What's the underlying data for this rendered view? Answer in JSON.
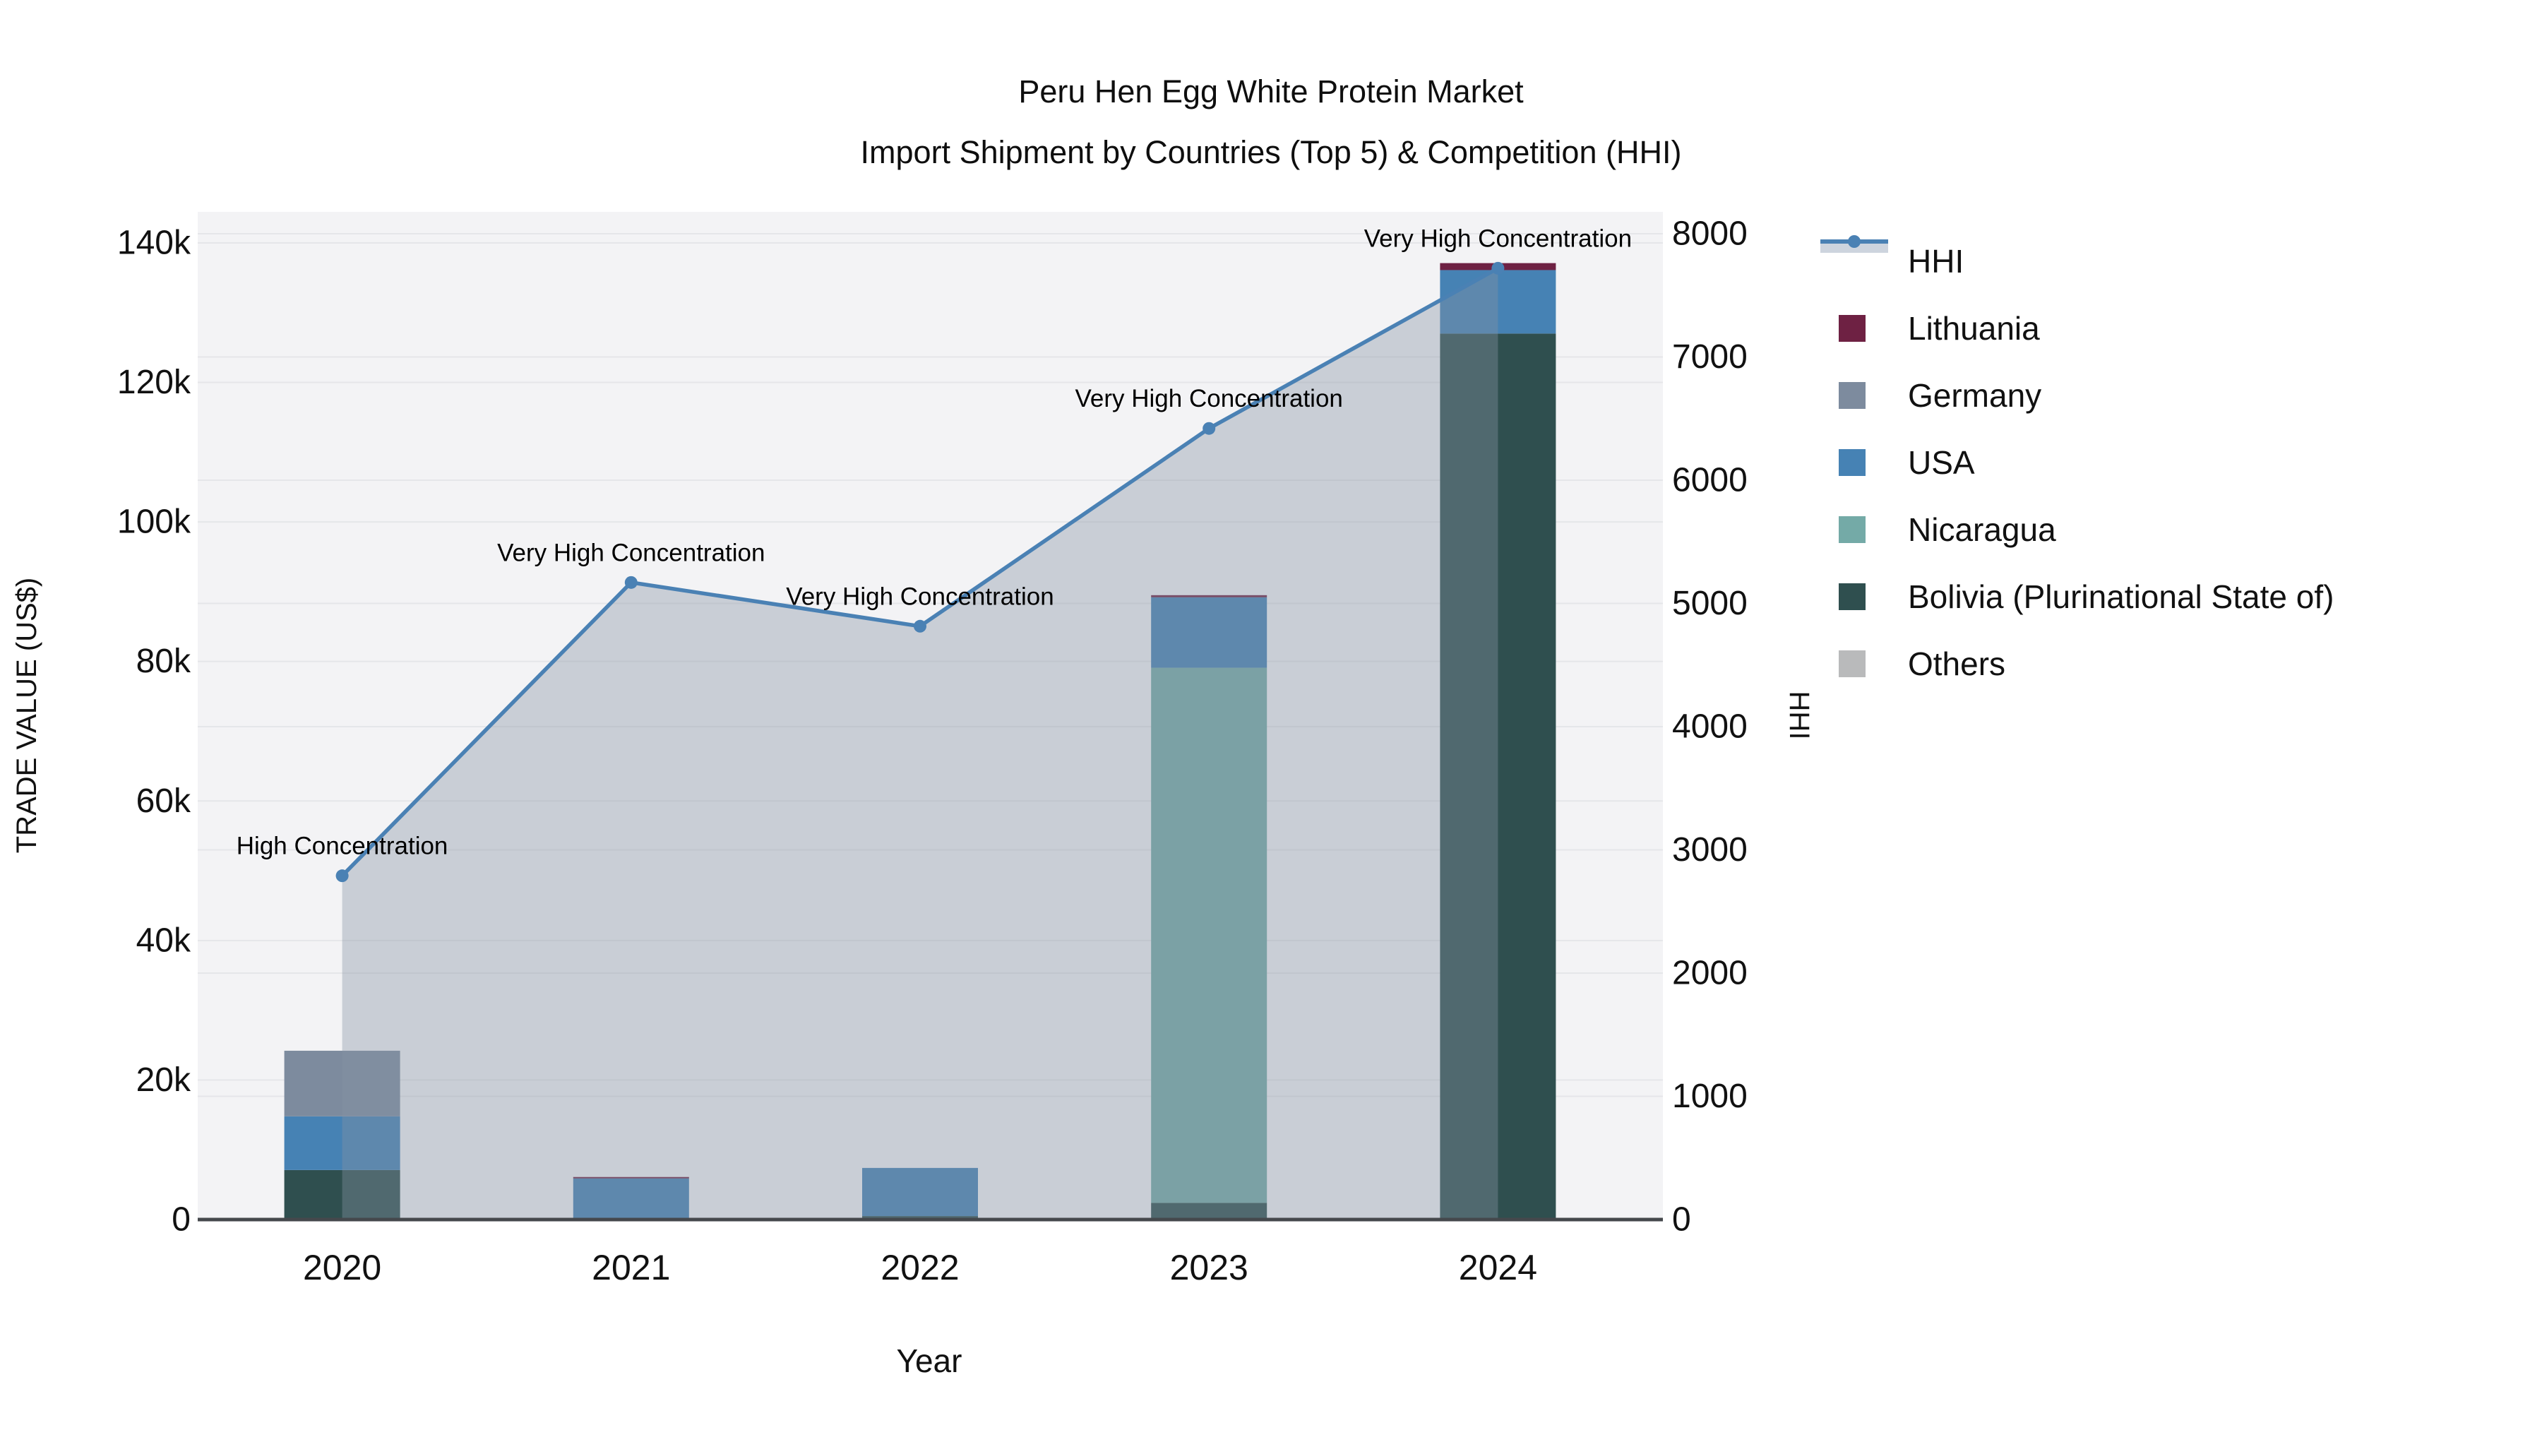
{
  "title": {
    "line1": "Peru Hen Egg White Protein Market",
    "line2": "Import Shipment by Countries (Top 5) & Competition (HHI)"
  },
  "colors": {
    "plot_bg": "#f3f3f5",
    "grid": "#e5e6e9",
    "axis_line": "#45484c",
    "tick_text": "#111111",
    "annotation_text": "#000000"
  },
  "chart_data": {
    "type": "bar+line",
    "categories": [
      "2020",
      "2021",
      "2022",
      "2023",
      "2024"
    ],
    "bar_series": [
      {
        "name": "Lithuania",
        "color": "#6e2143",
        "values": [
          0,
          200,
          0,
          300,
          1000
        ]
      },
      {
        "name": "Germany",
        "color": "#7d8b9e",
        "values": [
          9400,
          0,
          0,
          0,
          0
        ]
      },
      {
        "name": "USA",
        "color": "#4682b4",
        "values": [
          7700,
          5900,
          6900,
          10100,
          9100
        ]
      },
      {
        "name": "Nicaragua",
        "color": "#74aaa7",
        "values": [
          0,
          0,
          0,
          76700,
          0
        ]
      },
      {
        "name": "Bolivia (Plurinational State of)",
        "color": "#2f4f4f",
        "values": [
          7100,
          0,
          500,
          2400,
          127000
        ]
      },
      {
        "name": "Others",
        "color": "#b9babb",
        "values": [
          0,
          0,
          0,
          0,
          0
        ]
      }
    ],
    "line_series": {
      "name": "HHI",
      "color": "#4a81b4",
      "fill_color": "rgba(135,148,164,0.38)",
      "values": [
        2790,
        5170,
        4815,
        6420,
        7720
      ]
    },
    "annotations": [
      {
        "year": "2020",
        "text": "High Concentration"
      },
      {
        "year": "2021",
        "text": "Very High Concentration"
      },
      {
        "year": "2022",
        "text": "Very High Concentration"
      },
      {
        "year": "2023",
        "text": "Very High Concentration"
      },
      {
        "year": "2024",
        "text": "Very High Concentration"
      }
    ],
    "x_axis": {
      "title": "Year"
    },
    "left_axis": {
      "title": "TRADE VALUE (US$)",
      "ticks": [
        {
          "label": "0",
          "value": 0
        },
        {
          "label": "20k",
          "value": 20000
        },
        {
          "label": "40k",
          "value": 40000
        },
        {
          "label": "60k",
          "value": 60000
        },
        {
          "label": "80k",
          "value": 80000
        },
        {
          "label": "100k",
          "value": 100000
        },
        {
          "label": "120k",
          "value": 120000
        },
        {
          "label": "140k",
          "value": 140000
        }
      ]
    },
    "right_axis": {
      "title": "HHI",
      "ticks": [
        {
          "label": "0",
          "value": 0
        },
        {
          "label": "1000",
          "value": 1000
        },
        {
          "label": "2000",
          "value": 2000
        },
        {
          "label": "3000",
          "value": 3000
        },
        {
          "label": "4000",
          "value": 4000
        },
        {
          "label": "5000",
          "value": 5000
        },
        {
          "label": "6000",
          "value": 6000
        },
        {
          "label": "7000",
          "value": 7000
        },
        {
          "label": "8000",
          "value": 8000
        }
      ]
    },
    "legend_order": [
      "HHI",
      "Lithuania",
      "Germany",
      "USA",
      "Nicaragua",
      "Bolivia (Plurinational State of)",
      "Others"
    ]
  }
}
